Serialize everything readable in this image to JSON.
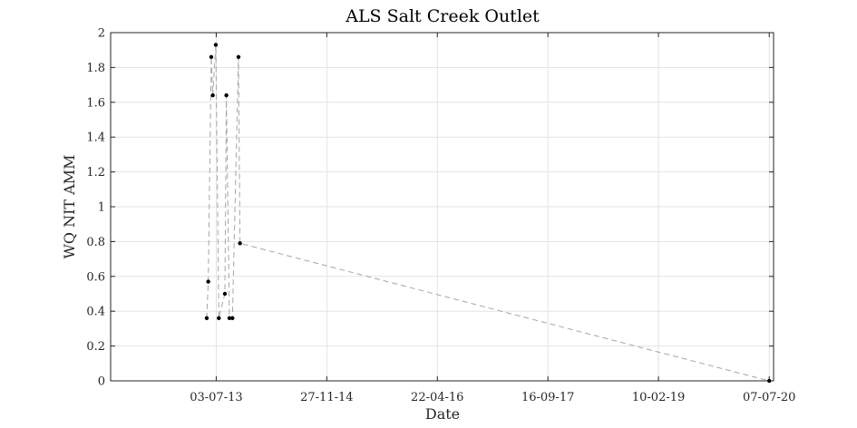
{
  "chart_data": {
    "type": "line",
    "title": "ALS Salt Creek Outlet",
    "xlabel": "Date",
    "ylabel": "WQ NIT AMM",
    "x_axis": {
      "type": "date",
      "format": "dd-mm-yy",
      "range": [
        "2012-03-01",
        "2020-07-27"
      ],
      "ticks": [
        "2013-07-03",
        "2014-11-27",
        "2016-04-22",
        "2017-09-16",
        "2019-02-10",
        "2020-07-07"
      ],
      "tick_labels": [
        "03-07-13",
        "27-11-14",
        "22-04-16",
        "16-09-17",
        "10-02-19",
        "07-07-20"
      ]
    },
    "y_axis": {
      "range": [
        0,
        2
      ],
      "ticks": [
        0,
        0.2,
        0.4,
        0.6,
        0.8,
        1,
        1.2,
        1.4,
        1.6,
        1.8,
        2
      ],
      "tick_labels": [
        "0",
        "0.2",
        "0.4",
        "0.6",
        "0.8",
        "1",
        "1.2",
        "1.4",
        "1.6",
        "1.8",
        "2"
      ]
    },
    "grid": true,
    "line_style": "dashed",
    "line_color": "#a6a6a6",
    "marker_color": "#000000",
    "series": [
      {
        "x": [
          "2013-05-20",
          "2013-05-27",
          "2013-06-10",
          "2013-06-17",
          "2013-07-01",
          "2013-07-15",
          "2013-08-12",
          "2013-08-19",
          "2013-09-02",
          "2013-09-16",
          "2013-10-14",
          "2013-10-21",
          "2020-07-07"
        ],
        "y": [
          0.36,
          0.57,
          1.86,
          1.64,
          1.93,
          0.36,
          0.5,
          1.64,
          0.36,
          0.36,
          1.86,
          0.79,
          0.0
        ]
      }
    ]
  }
}
